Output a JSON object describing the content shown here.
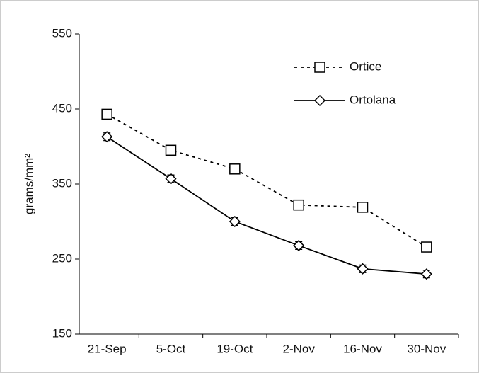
{
  "chart_data": {
    "type": "line",
    "y_label": "grams/mm²",
    "categories": [
      "21-Sep",
      "5-Oct",
      "19-Oct",
      "2-Nov",
      "16-Nov",
      "30-Nov"
    ],
    "series": [
      {
        "name": "Ortice",
        "color": "#000000",
        "linestyle": "dashed",
        "marker": "square",
        "values": [
          443,
          395,
          370,
          322,
          319,
          266
        ]
      },
      {
        "name": "Ortolana",
        "color": "#000000",
        "linestyle": "solid",
        "marker": "diamond",
        "values": [
          413,
          357,
          300,
          268,
          237,
          230
        ],
        "errors": [
          5,
          5,
          5,
          5,
          5,
          5
        ]
      }
    ],
    "ylim": [
      150,
      550
    ],
    "yticks": [
      150,
      250,
      350,
      450,
      550
    ],
    "grid": false,
    "legend": "upper right"
  }
}
